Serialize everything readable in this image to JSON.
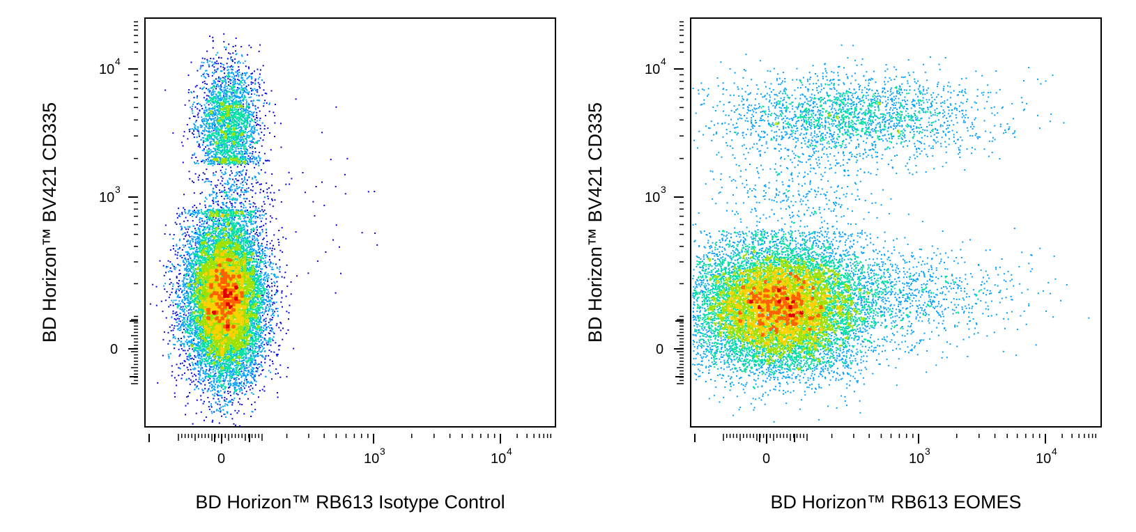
{
  "chart_data": [
    {
      "type": "scatter",
      "subtype": "flow-cytometry-density-dot-plot",
      "title": "",
      "xlabel": "BD Horizon™ RB613 Isotype Control",
      "ylabel": "BD Horizon™ BV421 CD335",
      "x_scale": "biexponential",
      "y_scale": "biexponential",
      "x_ticks": [
        {
          "base": "0",
          "exp": ""
        },
        {
          "base": "10",
          "exp": "3"
        },
        {
          "base": "10",
          "exp": "4"
        }
      ],
      "y_ticks": [
        {
          "base": "0",
          "exp": ""
        },
        {
          "base": "10",
          "exp": "3"
        },
        {
          "base": "10",
          "exp": "4"
        }
      ],
      "color_map": [
        "#0000e0",
        "#00a0ff",
        "#00e0a0",
        "#a0e000",
        "#ffd000",
        "#ff6000",
        "#e00000"
      ],
      "populations": [
        {
          "x_center": 30,
          "y_center": 200,
          "relative_events": 0.82
        },
        {
          "x_center": 20,
          "y_center": 4500,
          "relative_events": 0.14
        },
        {
          "x_center": 400,
          "y_center": 1000,
          "relative_events": 0.04
        }
      ]
    },
    {
      "type": "scatter",
      "subtype": "flow-cytometry-density-dot-plot",
      "title": "",
      "xlabel": "BD Horizon™ RB613 EOMES",
      "ylabel": "BD Horizon™ BV421 CD335",
      "x_scale": "biexponential",
      "y_scale": "biexponential",
      "x_ticks": [
        {
          "base": "0",
          "exp": ""
        },
        {
          "base": "10",
          "exp": "3"
        },
        {
          "base": "10",
          "exp": "4"
        }
      ],
      "y_ticks": [
        {
          "base": "0",
          "exp": ""
        },
        {
          "base": "10",
          "exp": "3"
        },
        {
          "base": "10",
          "exp": "4"
        }
      ],
      "color_map": [
        "#0000e0",
        "#00a0ff",
        "#00e0a0",
        "#a0e000",
        "#ffd000",
        "#ff6000",
        "#e00000"
      ],
      "populations": [
        {
          "x_center": 20,
          "y_center": 150,
          "relative_events": 0.78
        },
        {
          "x_center": 400,
          "y_center": 4000,
          "relative_events": 0.12
        },
        {
          "x_center": 800,
          "y_center": 200,
          "relative_events": 0.1
        }
      ]
    }
  ]
}
